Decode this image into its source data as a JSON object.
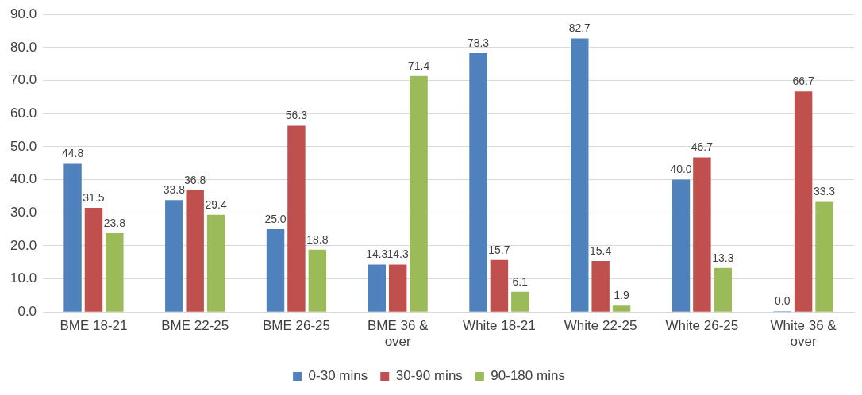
{
  "chart_data": {
    "type": "bar",
    "categories": [
      "BME 18-21",
      "BME 22-25",
      "BME 26-25",
      "BME 36 & over",
      "White 18-21",
      "White 22-25",
      "White 26-25",
      "White 36 & over"
    ],
    "series": [
      {
        "name": "0-30 mins",
        "color": "#4f81bd",
        "values": [
          44.8,
          33.8,
          25.0,
          14.3,
          78.3,
          82.7,
          40.0,
          0.0
        ],
        "value_labels": [
          "44.8",
          "33.8",
          "25.0",
          "14.3",
          "78.3",
          "82.7",
          "40.0",
          "0.0"
        ]
      },
      {
        "name": "30-90 mins",
        "color": "#c0504d",
        "values": [
          31.5,
          36.8,
          56.3,
          14.3,
          15.7,
          15.4,
          46.7,
          66.7
        ],
        "value_labels": [
          "31.5",
          "36.8",
          "56.3",
          "14.3",
          "15.7",
          "15.4",
          "46.7",
          "66.7"
        ]
      },
      {
        "name": "90-180 mins",
        "color": "#9bbb59",
        "values": [
          23.8,
          29.4,
          18.8,
          71.4,
          6.1,
          1.9,
          13.3,
          33.3
        ],
        "value_labels": [
          "23.8",
          "29.4",
          "18.8",
          "71.4",
          "6.1",
          "1.9",
          "13.3",
          "33.3"
        ]
      }
    ],
    "ylim": [
      0,
      90
    ],
    "yticks": [
      {
        "value": 0,
        "label": "0.0"
      },
      {
        "value": 10,
        "label": "10.0"
      },
      {
        "value": 20,
        "label": "20.0"
      },
      {
        "value": 30,
        "label": "30.0"
      },
      {
        "value": 40,
        "label": "40.0"
      },
      {
        "value": 50,
        "label": "50.0"
      },
      {
        "value": 60,
        "label": "60.0"
      },
      {
        "value": 70,
        "label": "70.0"
      },
      {
        "value": 80,
        "label": "80.0"
      },
      {
        "value": 90,
        "label": "90.0"
      }
    ],
    "grid": "y",
    "legend": "bottom"
  }
}
